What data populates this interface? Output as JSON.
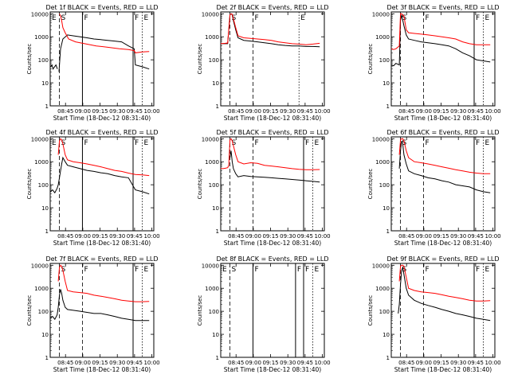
{
  "chart_data": [
    {
      "type": "line",
      "title": "Det 1f BLACK = Events, RED = LLD",
      "xlabel": "Start Time (18-Dec-12 08:31:40)",
      "ylabel": "Counts/sec",
      "x_ticks": [
        "08:45",
        "09:00",
        "09:15",
        "09:30",
        "09:45",
        "10:00"
      ],
      "y_ticks": [
        "1",
        "10",
        "100",
        "1000",
        "10000"
      ],
      "ylim": [
        1,
        12000
      ],
      "yscale": "log",
      "markers": [
        "E",
        "S",
        "F",
        "F",
        "E"
      ],
      "series": [
        {
          "name": "Events",
          "color": "#000000",
          "x": [
            0.4,
            1.5,
            2.4,
            5.0,
            6.2,
            7.6,
            7.61,
            9.0,
            11,
            15,
            20,
            26,
            32,
            38,
            44,
            50,
            56,
            62,
            68,
            73,
            74,
            80,
            86
          ],
          "y": [
            50,
            60,
            40,
            60,
            40,
            null,
            30,
            300,
            800,
            1200,
            1100,
            1000,
            900,
            800,
            750,
            700,
            650,
            600,
            400,
            300,
            60,
            50,
            40
          ]
        },
        {
          "name": "LLD",
          "color": "#ff0000",
          "x": [
            0.4,
            2.5,
            4,
            5,
            6,
            7,
            7.6,
            8,
            9,
            10,
            11,
            13,
            16,
            22,
            30,
            40,
            50,
            60,
            68,
            73,
            74,
            80,
            86
          ],
          "y": [
            null,
            null,
            null,
            null,
            null,
            null,
            null,
            10000,
            8000,
            5000,
            2500,
            1500,
            800,
            600,
            500,
            400,
            350,
            300,
            280,
            250,
            200,
            220,
            230
          ]
        }
      ]
    },
    {
      "type": "line",
      "title": "Det 2f BLACK = Events, RED = LLD",
      "xlabel": "Start Time (18-Dec-12 08:31:40)",
      "ylabel": "Counts/sec",
      "x_ticks": [
        "08:45",
        "09:00",
        "09:15",
        "09:30",
        "09:45",
        "10:00"
      ],
      "y_ticks": [
        "1",
        "10",
        "100",
        "1000",
        "10000"
      ],
      "ylim": [
        1,
        12000
      ],
      "yscale": "log",
      "markers": [
        "S",
        "F",
        "E"
      ],
      "series": [
        {
          "name": "Events",
          "color": "#000000",
          "x": [
            0,
            4,
            6,
            8,
            9,
            10,
            11,
            13,
            15,
            20,
            26,
            32,
            38,
            44,
            50,
            56,
            62,
            68,
            74,
            80,
            86
          ],
          "y": [
            500,
            500,
            500,
            9000,
            10000,
            9000,
            5000,
            2000,
            900,
            700,
            650,
            600,
            550,
            500,
            450,
            420,
            400,
            400,
            380,
            380,
            370
          ]
        },
        {
          "name": "LLD",
          "color": "#ff0000",
          "x": [
            0,
            4,
            6,
            8,
            9,
            10,
            11,
            13,
            15,
            20,
            26,
            32,
            38,
            44,
            50,
            56,
            62,
            68,
            74,
            80,
            86
          ],
          "y": [
            500,
            520,
            540,
            9000,
            10000,
            9500,
            6000,
            2500,
            1100,
            900,
            850,
            800,
            750,
            700,
            600,
            550,
            500,
            480,
            450,
            480,
            520
          ]
        }
      ]
    },
    {
      "type": "line",
      "title": "Det 3f BLACK = Events, RED = LLD",
      "xlabel": "Start Time (18-Dec-12 08:31:40)",
      "ylabel": "Counts/sec",
      "x_ticks": [
        "08:45",
        "09:00",
        "09:15",
        "09:30",
        "09:45",
        "10:00"
      ],
      "y_ticks": [
        "1",
        "10",
        "100",
        "1000",
        "10000"
      ],
      "ylim": [
        1,
        12000
      ],
      "yscale": "log",
      "markers": [
        "S",
        "F",
        "F",
        "E"
      ],
      "series": [
        {
          "name": "Events",
          "color": "#000000",
          "x": [
            0,
            2,
            4,
            7,
            8,
            9,
            11,
            13,
            15,
            20,
            26,
            32,
            38,
            44,
            50,
            56,
            62,
            68,
            74,
            80,
            86
          ],
          "y": [
            60,
            55,
            70,
            60,
            5000,
            9000,
            3000,
            1200,
            800,
            700,
            600,
            550,
            500,
            450,
            400,
            300,
            200,
            150,
            100,
            90,
            80
          ]
        },
        {
          "name": "LLD",
          "color": "#ff0000",
          "x": [
            0,
            2,
            4,
            7,
            8,
            9,
            11,
            13,
            15,
            20,
            26,
            32,
            38,
            44,
            50,
            56,
            62,
            68,
            74,
            80,
            86
          ],
          "y": [
            300,
            280,
            300,
            400,
            10000,
            10000,
            8000,
            2000,
            1500,
            1400,
            1300,
            1200,
            1100,
            1000,
            900,
            800,
            600,
            500,
            450,
            450,
            450
          ]
        }
      ]
    },
    {
      "type": "line",
      "title": "Det 4f BLACK = Events, RED = LLD",
      "xlabel": "Start Time (18-Dec-12 08:31:40)",
      "ylabel": "Counts/sec",
      "x_ticks": [
        "08:45",
        "09:00",
        "09:15",
        "09:30",
        "09:45",
        "10:00"
      ],
      "y_ticks": [
        "1",
        "10",
        "100",
        "1000",
        "10000"
      ],
      "ylim": [
        1,
        12000
      ],
      "yscale": "log",
      "markers": [
        "E",
        "S",
        "F",
        "F",
        "E"
      ],
      "series": [
        {
          "name": "Events",
          "color": "#000000",
          "x": [
            0,
            2,
            4,
            6,
            7,
            8,
            9,
            10,
            11,
            13,
            15,
            20,
            26,
            32,
            38,
            44,
            50,
            56,
            62,
            68,
            74,
            80,
            86
          ],
          "y": [
            50,
            60,
            45,
            70,
            100,
            200,
            400,
            800,
            1500,
            1000,
            700,
            600,
            500,
            420,
            380,
            330,
            300,
            250,
            220,
            200,
            60,
            50,
            40
          ]
        },
        {
          "name": "LLD",
          "color": "#ff0000",
          "x": [
            0,
            2,
            4,
            6,
            7,
            8,
            9,
            10,
            11,
            13,
            15,
            20,
            26,
            32,
            38,
            44,
            50,
            56,
            62,
            68,
            74,
            80,
            86
          ],
          "y": [
            null,
            null,
            null,
            null,
            2000,
            8000,
            10000,
            9000,
            6000,
            2000,
            1200,
            1000,
            900,
            800,
            700,
            600,
            500,
            420,
            380,
            320,
            280,
            270,
            250
          ]
        }
      ]
    },
    {
      "type": "line",
      "title": "Det 5f BLACK = Events, RED = LLD",
      "xlabel": "Start Time (18-Dec-12 08:31:40)",
      "ylabel": "Counts/sec",
      "x_ticks": [
        "08:45",
        "09:00",
        "09:15",
        "09:30",
        "09:45",
        "10:00"
      ],
      "y_ticks": [
        "1",
        "10",
        "100",
        "1000",
        "10000"
      ],
      "ylim": [
        1,
        12000
      ],
      "yscale": "log",
      "markers": [
        "S",
        "F",
        "F",
        "E"
      ],
      "series": [
        {
          "name": "Events",
          "color": "#000000",
          "x": [
            0,
            2,
            4,
            6,
            7,
            8,
            9,
            10,
            11,
            13,
            15,
            20,
            26,
            32,
            38,
            44,
            50,
            56,
            62,
            68,
            74,
            80,
            86
          ],
          "y": [
            null,
            null,
            null,
            null,
            null,
            1500,
            3000,
            1000,
            500,
            300,
            220,
            250,
            230,
            220,
            210,
            200,
            190,
            180,
            170,
            160,
            150,
            140,
            130
          ]
        },
        {
          "name": "LLD",
          "color": "#ff0000",
          "x": [
            0,
            2,
            4,
            6,
            7,
            8,
            9,
            10,
            11,
            13,
            15,
            20,
            26,
            32,
            38,
            44,
            50,
            56,
            62,
            68,
            74,
            80,
            86
          ],
          "y": [
            500,
            500,
            520,
            550,
            700,
            9000,
            10000,
            8000,
            5000,
            2000,
            1000,
            800,
            900,
            850,
            700,
            650,
            600,
            550,
            500,
            470,
            450,
            450,
            460
          ]
        }
      ]
    },
    {
      "type": "line",
      "title": "Det 6f BLACK = Events, RED = LLD",
      "xlabel": "Start Time (18-Dec-12 08:31:40)",
      "ylabel": "Counts/sec",
      "x_ticks": [
        "08:45",
        "09:00",
        "09:15",
        "09:30",
        "09:45",
        "10:00"
      ],
      "y_ticks": [
        "1",
        "10",
        "100",
        "1000",
        "10000"
      ],
      "ylim": [
        1,
        12000
      ],
      "yscale": "log",
      "markers": [
        "S",
        "F",
        "F",
        "E"
      ],
      "series": [
        {
          "name": "Events",
          "color": "#000000",
          "x": [
            0,
            2,
            4,
            6,
            7,
            8,
            9,
            10,
            11,
            13,
            15,
            20,
            26,
            32,
            38,
            44,
            50,
            56,
            62,
            68,
            74,
            80,
            86
          ],
          "y": [
            null,
            null,
            null,
            null,
            500,
            3000,
            8000,
            6000,
            2000,
            800,
            400,
            300,
            250,
            200,
            180,
            150,
            130,
            100,
            90,
            80,
            60,
            50,
            45
          ]
        },
        {
          "name": "LLD",
          "color": "#ff0000",
          "x": [
            0,
            2,
            4,
            6,
            7,
            8,
            9,
            10,
            11,
            13,
            15,
            20,
            26,
            32,
            38,
            44,
            50,
            56,
            62,
            68,
            74,
            80,
            86
          ],
          "y": [
            null,
            null,
            null,
            null,
            2000,
            9000,
            10000,
            10000,
            8000,
            3000,
            1500,
            1000,
            900,
            800,
            700,
            600,
            520,
            450,
            400,
            350,
            320,
            300,
            300
          ]
        }
      ]
    },
    {
      "type": "line",
      "title": "Det 7f BLACK = Events, RED = LLD",
      "xlabel": "Start Time (18-Dec-12 08:31:40)",
      "ylabel": "Counts/sec",
      "x_ticks": [
        "08:45",
        "09:00",
        "09:15",
        "09:30",
        "09:45",
        "10:00"
      ],
      "y_ticks": [
        "1",
        "10",
        "100",
        "1000",
        "10000"
      ],
      "ylim": [
        1,
        12000
      ],
      "yscale": "log",
      "markers": [
        "S",
        "F",
        "F",
        "E"
      ],
      "series": [
        {
          "name": "Events",
          "color": "#000000",
          "x": [
            0,
            2,
            4,
            6,
            7,
            8,
            9,
            10,
            11,
            13,
            15,
            20,
            26,
            32,
            38,
            44,
            50,
            56,
            62,
            68,
            74,
            80,
            86
          ],
          "y": [
            50,
            60,
            45,
            70,
            150,
            500,
            900,
            600,
            300,
            150,
            120,
            110,
            100,
            90,
            80,
            80,
            70,
            60,
            50,
            45,
            40,
            40,
            40
          ]
        },
        {
          "name": "LLD",
          "color": "#ff0000",
          "x": [
            0,
            2,
            4,
            6,
            7,
            8,
            9,
            10,
            11,
            13,
            15,
            20,
            26,
            32,
            38,
            44,
            50,
            56,
            62,
            68,
            74,
            80,
            86
          ],
          "y": [
            null,
            null,
            null,
            null,
            2000,
            8000,
            10000,
            9000,
            6000,
            2000,
            800,
            700,
            650,
            600,
            500,
            450,
            400,
            350,
            300,
            280,
            260,
            260,
            270
          ]
        }
      ]
    },
    {
      "type": "line",
      "title": "Det 8f BLACK = Events, RED = LLD",
      "xlabel": "Start Time (18-Dec-12 08:31:40)",
      "ylabel": "Counts/sec",
      "x_ticks": [
        "08:45",
        "09:00",
        "09:15",
        "09:30",
        "09:45",
        "10:00"
      ],
      "y_ticks": [
        "1",
        "10",
        "100",
        "1000",
        "10000"
      ],
      "ylim": [
        1,
        12000
      ],
      "yscale": "log",
      "markers": [
        "E",
        "S",
        "F",
        "F",
        "F",
        "E"
      ],
      "series": []
    },
    {
      "type": "line",
      "title": "Det 9f BLACK = Events, RED = LLD",
      "xlabel": "Start Time (18-Dec-12 08:31:40)",
      "ylabel": "Counts/sec",
      "x_ticks": [
        "08:45",
        "09:00",
        "09:15",
        "09:30",
        "09:45",
        "10:00"
      ],
      "y_ticks": [
        "1",
        "10",
        "100",
        "1000",
        "10000"
      ],
      "ylim": [
        1,
        12000
      ],
      "yscale": "log",
      "markers": [
        "S",
        "F",
        "F",
        "E"
      ],
      "series": [
        {
          "name": "Events",
          "color": "#000000",
          "x": [
            0,
            2,
            4,
            6,
            7,
            8,
            9,
            10,
            11,
            13,
            15,
            20,
            26,
            32,
            38,
            44,
            50,
            56,
            62,
            68,
            74,
            80,
            86
          ],
          "y": [
            null,
            null,
            null,
            80,
            200,
            1500,
            6000,
            8000,
            4000,
            1000,
            500,
            300,
            220,
            180,
            150,
            120,
            100,
            80,
            70,
            60,
            50,
            45,
            40
          ]
        },
        {
          "name": "LLD",
          "color": "#ff0000",
          "x": [
            0,
            2,
            4,
            6,
            7,
            8,
            9,
            10,
            11,
            13,
            15,
            20,
            26,
            32,
            38,
            44,
            50,
            56,
            62,
            68,
            74,
            80,
            86
          ],
          "y": [
            null,
            null,
            null,
            null,
            2000,
            9000,
            10000,
            10000,
            9000,
            3000,
            1000,
            800,
            700,
            650,
            600,
            520,
            450,
            400,
            350,
            300,
            280,
            280,
            290
          ]
        }
      ]
    }
  ]
}
